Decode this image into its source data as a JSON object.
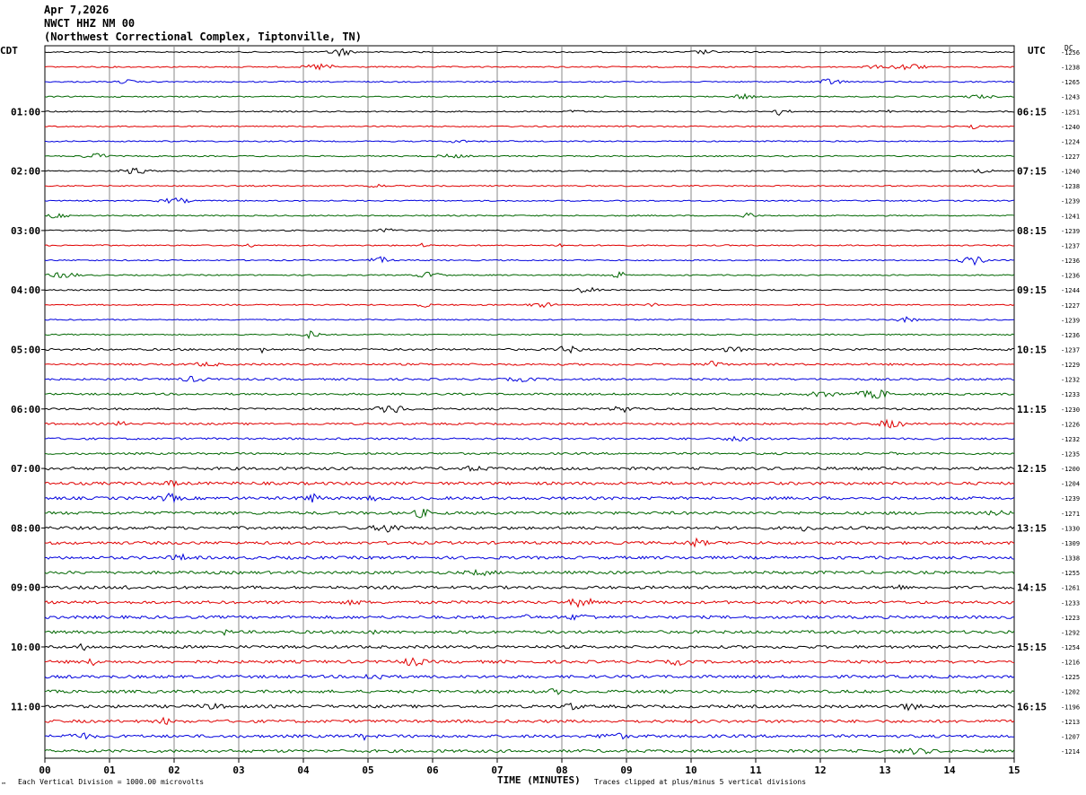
{
  "header": {
    "date": "Apr 7,2026",
    "station": "NWCT HHZ NM 00",
    "location": "(Northwest Correctional Complex, Tiptonville, TN)"
  },
  "left_tz": "CDT",
  "right_tz": "UTC",
  "dc_label": "DC",
  "footer": {
    "scale": "Each Vertical Division = 1000.00 microvolts",
    "clip": "Traces clipped at plus/minus 5 vertical divisions",
    "logo": "™"
  },
  "colors": {
    "trace_cycle": [
      "#000000",
      "#e00000",
      "#0000dd",
      "#006600"
    ],
    "grid": "#888888"
  },
  "chart_data": {
    "type": "line",
    "title": "NWCT HHZ NM 00",
    "xlabel": "TIME (MINUTES)",
    "ylabel": "",
    "xlim": [
      0,
      15
    ],
    "x_ticks": [
      "00",
      "01",
      "02",
      "03",
      "04",
      "05",
      "06",
      "07",
      "08",
      "09",
      "10",
      "11",
      "12",
      "13",
      "14",
      "15"
    ],
    "left_hour_labels": [
      "01:00",
      "02:00",
      "03:00",
      "04:00",
      "05:00",
      "06:00",
      "07:00",
      "08:00",
      "09:00",
      "10:00",
      "11:00"
    ],
    "right_hour_labels": [
      "06:15",
      "07:15",
      "08:15",
      "09:15",
      "10:15",
      "11:15",
      "12:15",
      "13:15",
      "14:15",
      "15:15",
      "16:15"
    ],
    "grid": true,
    "trace_count": 48,
    "dc_offsets": [
      "-1256",
      "-1238",
      "-1265",
      "-1243",
      "-1251",
      "-1240",
      "-1224",
      "-1227",
      "-1240",
      "-1238",
      "-1239",
      "-1241",
      "-1239",
      "-1237",
      "-1236",
      "-1236",
      "-1244",
      "-1227",
      "-1239",
      "-1236",
      "-1237",
      "-1229",
      "-1232",
      "-1233",
      "-1230",
      "-1226",
      "-1232",
      "-1235",
      "-1200",
      "-1204",
      "-1239",
      "-1271",
      "-1330",
      "-1309",
      "-1338",
      "-1255",
      "-1261",
      "-1233",
      "-1223",
      "-1292",
      "-1254",
      "-1216",
      "-1225",
      "-1202",
      "-1196",
      "-1213",
      "-1207",
      "-1214"
    ]
  }
}
